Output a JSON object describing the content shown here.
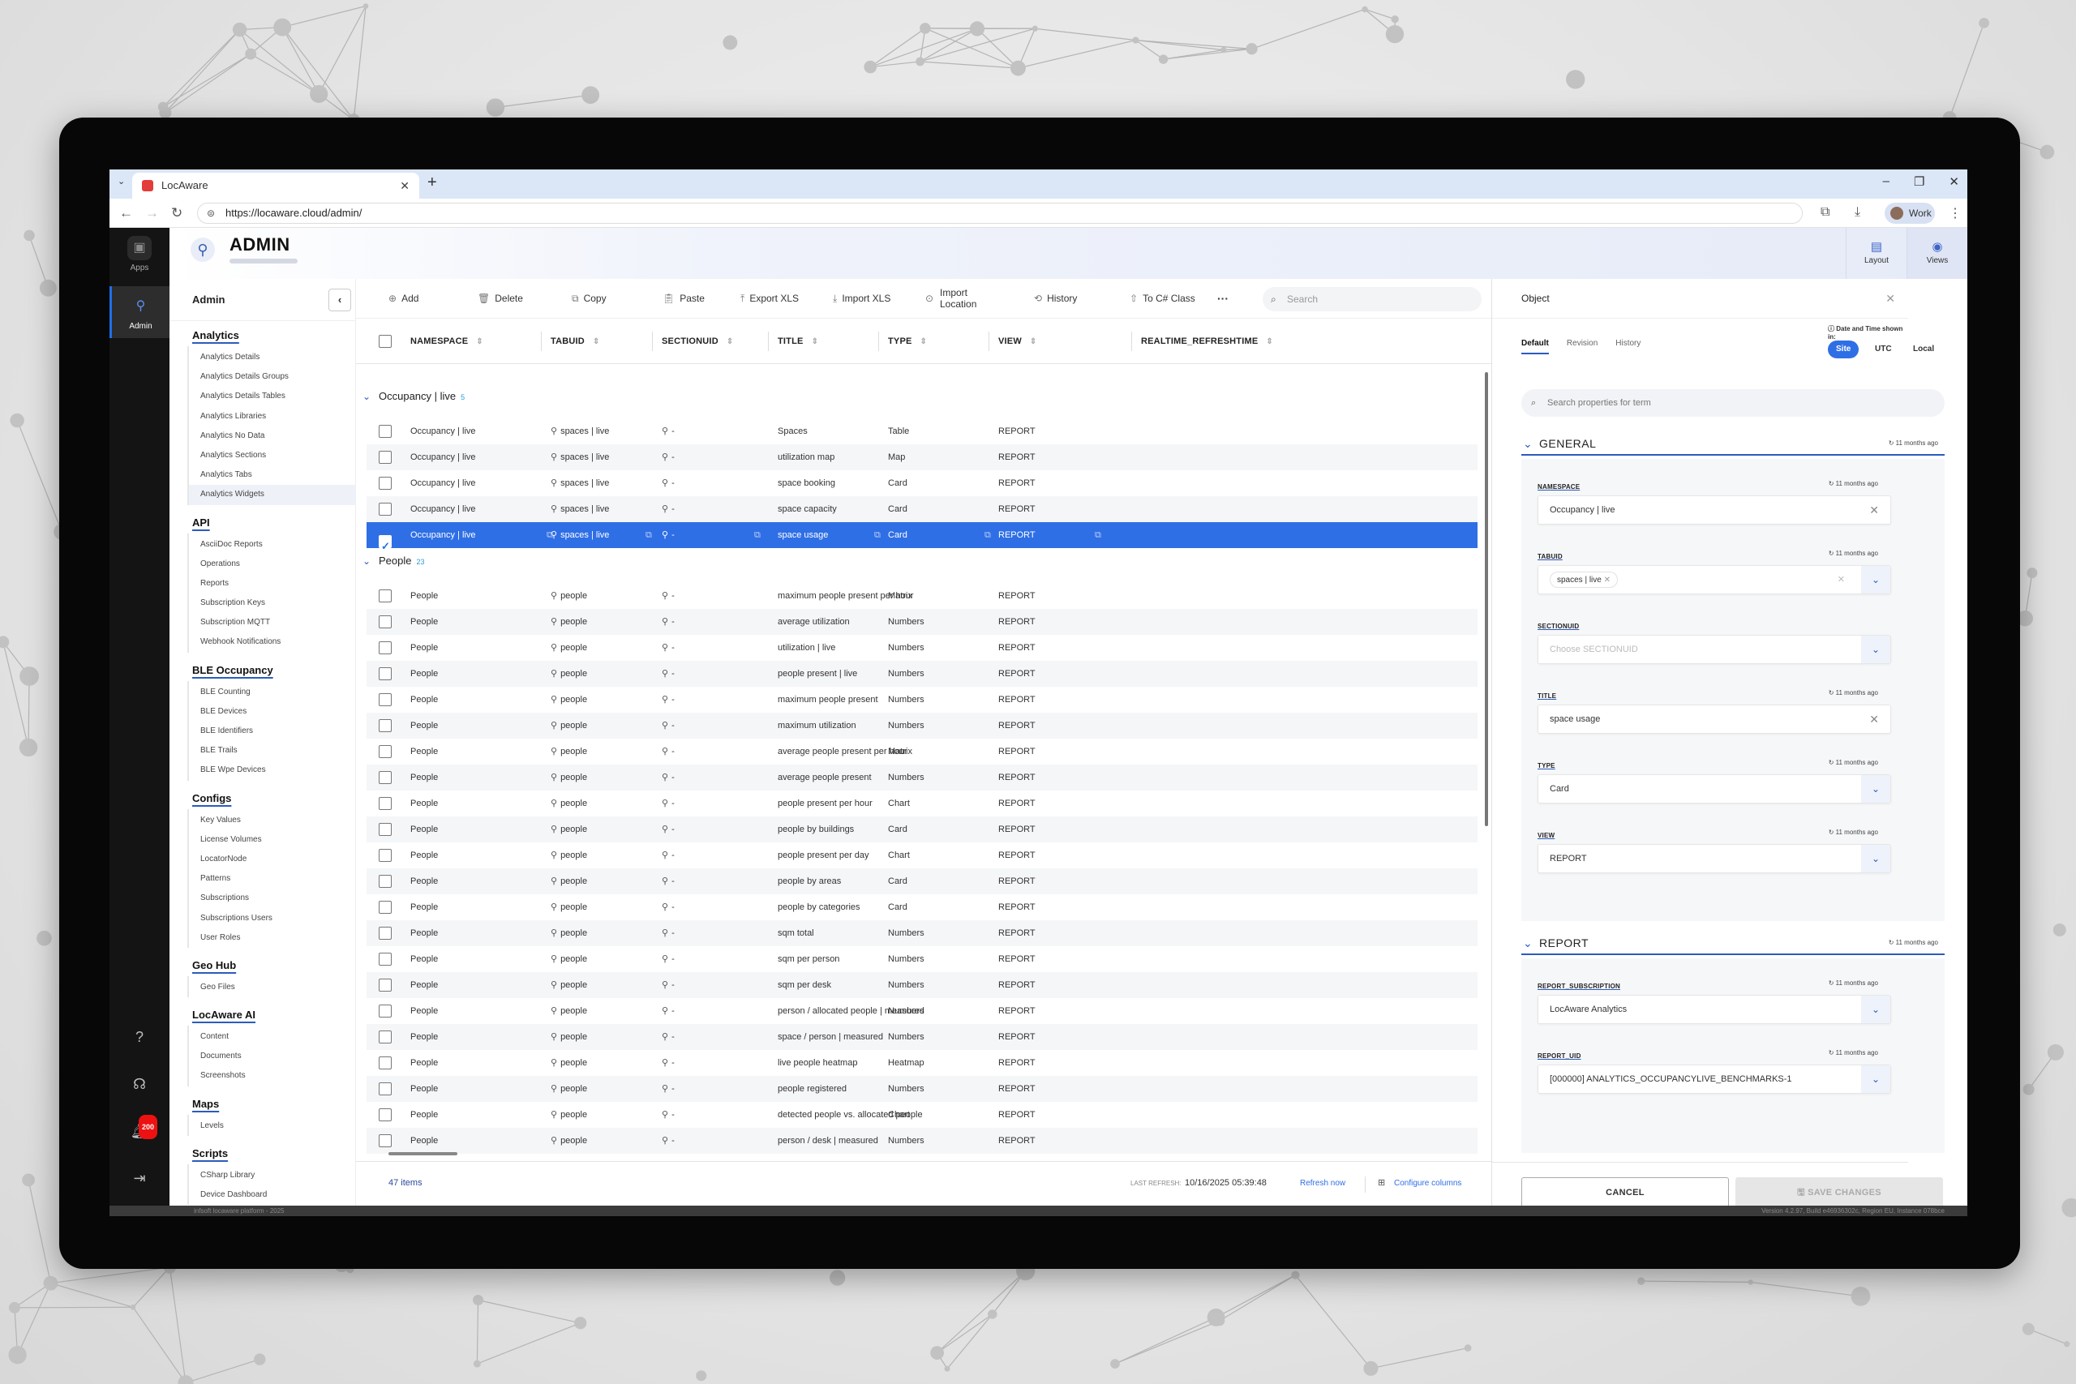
{
  "browser": {
    "tab_title": "LocAware",
    "url": "https://locaware.cloud/admin/",
    "profile": "Work"
  },
  "rail": {
    "apps_label": "Apps",
    "admin_label": "Admin",
    "notification_count": "200"
  },
  "header": {
    "title": "ADMIN",
    "layout_label": "Layout",
    "views_label": "Views"
  },
  "sidebar": {
    "title": "Admin",
    "sections": [
      {
        "label": "Analytics",
        "items": [
          "Analytics Details",
          "Analytics Details Groups",
          "Analytics Details Tables",
          "Analytics Libraries",
          "Analytics No Data",
          "Analytics Sections",
          "Analytics Tabs",
          "Analytics Widgets"
        ]
      },
      {
        "label": "API",
        "items": [
          "AsciiDoc Reports",
          "Operations",
          "Reports",
          "Subscription Keys",
          "Subscription MQTT",
          "Webhook Notifications"
        ]
      },
      {
        "label": "BLE Occupancy",
        "items": [
          "BLE Counting",
          "BLE Devices",
          "BLE Identifiers",
          "BLE Trails",
          "BLE Wpe Devices"
        ]
      },
      {
        "label": "Configs",
        "items": [
          "Key Values",
          "License Volumes",
          "LocatorNode",
          "Patterns",
          "Subscriptions",
          "Subscriptions Users",
          "User Roles"
        ]
      },
      {
        "label": "Geo Hub",
        "items": [
          "Geo Files"
        ]
      },
      {
        "label": "LocAware AI",
        "items": [
          "Content",
          "Documents",
          "Screenshots"
        ]
      },
      {
        "label": "Maps",
        "items": [
          "Levels"
        ]
      },
      {
        "label": "Scripts",
        "items": [
          "CSharp Library",
          "Device Dashboard"
        ]
      }
    ],
    "footer": "infsoft locaware platform - 2025"
  },
  "toolbar": {
    "add": "Add",
    "delete": "Delete",
    "copy": "Copy",
    "paste": "Paste",
    "export": "Export XLS",
    "import": "Import XLS",
    "import_location_1": "Import",
    "import_location_2": "Location",
    "history": "History",
    "to_class": "To C# Class",
    "more": "···",
    "search_placeholder": "Search"
  },
  "grid": {
    "columns": [
      "NAMESPACE",
      "TABUID",
      "SECTIONUID",
      "TITLE",
      "TYPE",
      "VIEW",
      "REALTIME_REFRESHTIME"
    ],
    "groups": [
      {
        "name": "Occupancy | live",
        "count": "5",
        "rows": [
          {
            "ns": "Occupancy | live",
            "tab": "spaces | live",
            "sec": "-",
            "title": "Spaces",
            "type": "Table",
            "view": "REPORT"
          },
          {
            "ns": "Occupancy | live",
            "tab": "spaces | live",
            "sec": "-",
            "title": "utilization map",
            "type": "Map",
            "view": "REPORT"
          },
          {
            "ns": "Occupancy | live",
            "tab": "spaces | live",
            "sec": "-",
            "title": "space booking",
            "type": "Card",
            "view": "REPORT"
          },
          {
            "ns": "Occupancy | live",
            "tab": "spaces | live",
            "sec": "-",
            "title": "space capacity",
            "type": "Card",
            "view": "REPORT"
          },
          {
            "ns": "Occupancy | live",
            "tab": "spaces | live",
            "sec": "-",
            "title": "space usage",
            "type": "Card",
            "view": "REPORT",
            "selected": true
          }
        ]
      },
      {
        "name": "People",
        "count": "23",
        "rows": [
          {
            "ns": "People",
            "tab": "people",
            "sec": "-",
            "title": "maximum people present per hour",
            "type": "Matrix",
            "view": "REPORT"
          },
          {
            "ns": "People",
            "tab": "people",
            "sec": "-",
            "title": "average utilization",
            "type": "Numbers",
            "view": "REPORT"
          },
          {
            "ns": "People",
            "tab": "people",
            "sec": "-",
            "title": "utilization | live",
            "type": "Numbers",
            "view": "REPORT"
          },
          {
            "ns": "People",
            "tab": "people",
            "sec": "-",
            "title": "people present | live",
            "type": "Numbers",
            "view": "REPORT"
          },
          {
            "ns": "People",
            "tab": "people",
            "sec": "-",
            "title": "maximum people present",
            "type": "Numbers",
            "view": "REPORT"
          },
          {
            "ns": "People",
            "tab": "people",
            "sec": "-",
            "title": "maximum utilization",
            "type": "Numbers",
            "view": "REPORT"
          },
          {
            "ns": "People",
            "tab": "people",
            "sec": "-",
            "title": "average people present per hour",
            "type": "Matrix",
            "view": "REPORT"
          },
          {
            "ns": "People",
            "tab": "people",
            "sec": "-",
            "title": "average people present",
            "type": "Numbers",
            "view": "REPORT"
          },
          {
            "ns": "People",
            "tab": "people",
            "sec": "-",
            "title": "people present per hour",
            "type": "Chart",
            "view": "REPORT"
          },
          {
            "ns": "People",
            "tab": "people",
            "sec": "-",
            "title": "people by buildings",
            "type": "Card",
            "view": "REPORT"
          },
          {
            "ns": "People",
            "tab": "people",
            "sec": "-",
            "title": "people present per day",
            "type": "Chart",
            "view": "REPORT"
          },
          {
            "ns": "People",
            "tab": "people",
            "sec": "-",
            "title": "people by areas",
            "type": "Card",
            "view": "REPORT"
          },
          {
            "ns": "People",
            "tab": "people",
            "sec": "-",
            "title": "people by categories",
            "type": "Card",
            "view": "REPORT"
          },
          {
            "ns": "People",
            "tab": "people",
            "sec": "-",
            "title": "sqm total",
            "type": "Numbers",
            "view": "REPORT"
          },
          {
            "ns": "People",
            "tab": "people",
            "sec": "-",
            "title": "sqm per person",
            "type": "Numbers",
            "view": "REPORT"
          },
          {
            "ns": "People",
            "tab": "people",
            "sec": "-",
            "title": "sqm per desk",
            "type": "Numbers",
            "view": "REPORT"
          },
          {
            "ns": "People",
            "tab": "people",
            "sec": "-",
            "title": "person / allocated people | measured",
            "type": "Numbers",
            "view": "REPORT"
          },
          {
            "ns": "People",
            "tab": "people",
            "sec": "-",
            "title": "space / person | measured",
            "type": "Numbers",
            "view": "REPORT"
          },
          {
            "ns": "People",
            "tab": "people",
            "sec": "-",
            "title": "live people heatmap",
            "type": "Heatmap",
            "view": "REPORT"
          },
          {
            "ns": "People",
            "tab": "people",
            "sec": "-",
            "title": "people registered",
            "type": "Numbers",
            "view": "REPORT"
          },
          {
            "ns": "People",
            "tab": "people",
            "sec": "-",
            "title": "detected people vs. allocated people",
            "type": "Chart",
            "view": "REPORT"
          },
          {
            "ns": "People",
            "tab": "people",
            "sec": "-",
            "title": "person / desk | measured",
            "type": "Numbers",
            "view": "REPORT"
          }
        ]
      }
    ],
    "footer": {
      "items": "47 items",
      "last_refresh_label": "LAST REFRESH:",
      "last_refresh": "10/16/2025 05:39:48",
      "refresh_now": "Refresh now",
      "configure": "Configure columns"
    }
  },
  "panel": {
    "title": "Object",
    "tabs": [
      "Default",
      "Revision",
      "History"
    ],
    "tz_note": "Date and Time shown in:",
    "tz_options": [
      "Site",
      "UTC",
      "Local"
    ],
    "search_placeholder": "Search properties for term",
    "general_label": "GENERAL",
    "report_label": "REPORT",
    "updated": "11 months ago",
    "fields": {
      "namespace": {
        "label": "NAMESPACE",
        "value": "Occupancy | live"
      },
      "tabuid": {
        "label": "TABUID",
        "value": "spaces | live"
      },
      "sectionuid": {
        "label": "SECTIONUID",
        "placeholder": "Choose SECTIONUID"
      },
      "title": {
        "label": "TITLE",
        "value": "space usage"
      },
      "type": {
        "label": "TYPE",
        "value": "Card"
      },
      "view": {
        "label": "VIEW",
        "value": "REPORT"
      },
      "report_subscription": {
        "label": "REPORT_SUBSCRIPTION",
        "value": "LocAware Analytics"
      },
      "report_uid": {
        "label": "REPORT_UID",
        "value": "[000000] ANALYTICS_OCCUPANCYLIVE_BENCHMARKS-1"
      }
    },
    "cancel": "CANCEL",
    "save": "SAVE CHANGES"
  },
  "status": {
    "version": "Version 4.2.97, Build e46936302c, Region EU, Instance 078bce"
  }
}
